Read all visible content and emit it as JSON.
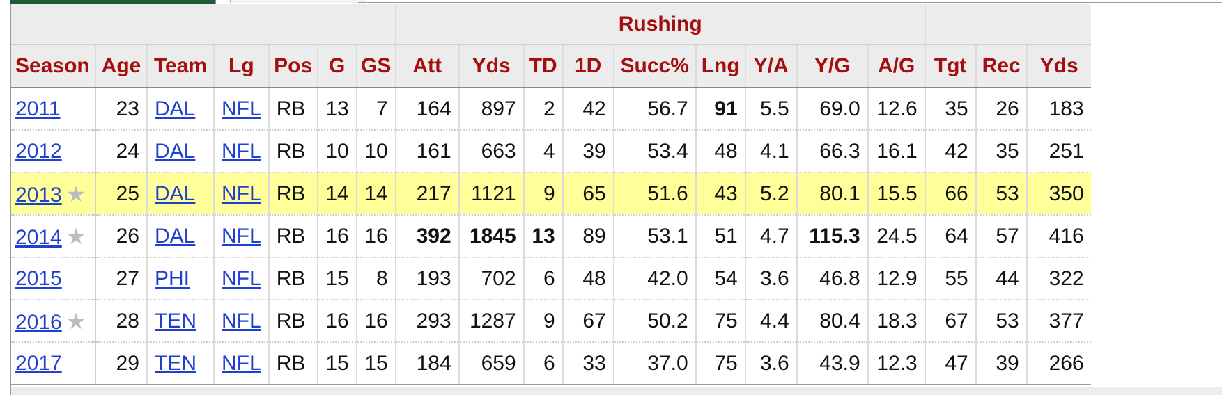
{
  "group_header": "Rushing",
  "columns": [
    "Season",
    "Age",
    "Team",
    "Lg",
    "Pos",
    "G",
    "GS",
    "Att",
    "Yds",
    "TD",
    "1D",
    "Succ%",
    "Lng",
    "Y/A",
    "Y/G",
    "A/G",
    "Tgt",
    "Rec",
    "Yds"
  ],
  "rows": [
    {
      "season": "2011",
      "star": false,
      "age": "23",
      "team": "DAL",
      "lg": "NFL",
      "pos": "RB",
      "g": "13",
      "gs": "7",
      "att": "164",
      "yds": "897",
      "td": "2",
      "fd": "42",
      "succ": "56.7",
      "lng": "91",
      "ya": "5.5",
      "yg": "69.0",
      "ag": "12.6",
      "tgt": "35",
      "rec": "26",
      "ryds": "183"
    },
    {
      "season": "2012",
      "star": false,
      "age": "24",
      "team": "DAL",
      "lg": "NFL",
      "pos": "RB",
      "g": "10",
      "gs": "10",
      "att": "161",
      "yds": "663",
      "td": "4",
      "fd": "39",
      "succ": "53.4",
      "lng": "48",
      "ya": "4.1",
      "yg": "66.3",
      "ag": "16.1",
      "tgt": "42",
      "rec": "35",
      "ryds": "251"
    },
    {
      "season": "2013",
      "star": true,
      "age": "25",
      "team": "DAL",
      "lg": "NFL",
      "pos": "RB",
      "g": "14",
      "gs": "14",
      "att": "217",
      "yds": "1121",
      "td": "9",
      "fd": "65",
      "succ": "51.6",
      "lng": "43",
      "ya": "5.2",
      "yg": "80.1",
      "ag": "15.5",
      "tgt": "66",
      "rec": "53",
      "ryds": "350"
    },
    {
      "season": "2014",
      "star": true,
      "age": "26",
      "team": "DAL",
      "lg": "NFL",
      "pos": "RB",
      "g": "16",
      "gs": "16",
      "att": "392",
      "yds": "1845",
      "td": "13",
      "fd": "89",
      "succ": "53.1",
      "lng": "51",
      "ya": "4.7",
      "yg": "115.3",
      "ag": "24.5",
      "tgt": "64",
      "rec": "57",
      "ryds": "416"
    },
    {
      "season": "2015",
      "star": false,
      "age": "27",
      "team": "PHI",
      "lg": "NFL",
      "pos": "RB",
      "g": "15",
      "gs": "8",
      "att": "193",
      "yds": "702",
      "td": "6",
      "fd": "48",
      "succ": "42.0",
      "lng": "54",
      "ya": "3.6",
      "yg": "46.8",
      "ag": "12.9",
      "tgt": "55",
      "rec": "44",
      "ryds": "322"
    },
    {
      "season": "2016",
      "star": true,
      "age": "28",
      "team": "TEN",
      "lg": "NFL",
      "pos": "RB",
      "g": "16",
      "gs": "16",
      "att": "293",
      "yds": "1287",
      "td": "9",
      "fd": "67",
      "succ": "50.2",
      "lng": "75",
      "ya": "4.4",
      "yg": "80.4",
      "ag": "18.3",
      "tgt": "67",
      "rec": "53",
      "ryds": "377"
    },
    {
      "season": "2017",
      "star": false,
      "age": "29",
      "team": "TEN",
      "lg": "NFL",
      "pos": "RB",
      "g": "15",
      "gs": "15",
      "att": "184",
      "yds": "659",
      "td": "6",
      "fd": "33",
      "succ": "37.0",
      "lng": "75",
      "ya": "3.6",
      "yg": "43.9",
      "ag": "12.3",
      "tgt": "47",
      "rec": "39",
      "ryds": "266"
    }
  ],
  "star_glyph": "★",
  "colors": {
    "header_text": "#a50e0e",
    "link": "#1f3fd1",
    "highlight_row": "#ffff99",
    "tab_active": "#1e5b36"
  }
}
